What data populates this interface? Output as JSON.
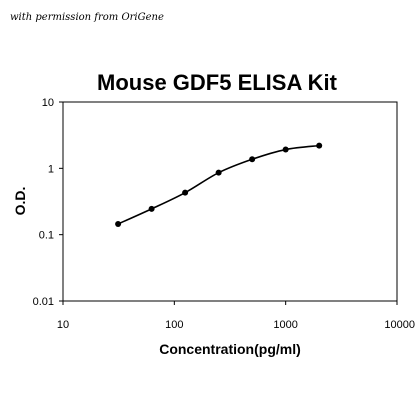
{
  "credit": "with permission from OriGene",
  "chart_data": {
    "type": "line",
    "title": "Mouse GDF5 ELISA Kit",
    "xlabel": "Concentration(pg/ml)",
    "ylabel": "O.D.",
    "x_scale": "log",
    "y_scale": "log",
    "xlim": [
      10,
      10000
    ],
    "ylim": [
      0.01,
      10
    ],
    "x_ticks": [
      "10",
      "100",
      "1000",
      "10000"
    ],
    "y_ticks": [
      "0.01",
      "0.1",
      "1",
      "10"
    ],
    "grid": false,
    "legend": "none",
    "series": [
      {
        "x": [
          31.25,
          62.5,
          125,
          250,
          500,
          1000,
          2000
        ],
        "y": [
          0.145,
          0.245,
          0.43,
          0.86,
          1.37,
          1.92,
          2.2
        ],
        "color": "#000000",
        "marker": "circle"
      }
    ]
  }
}
